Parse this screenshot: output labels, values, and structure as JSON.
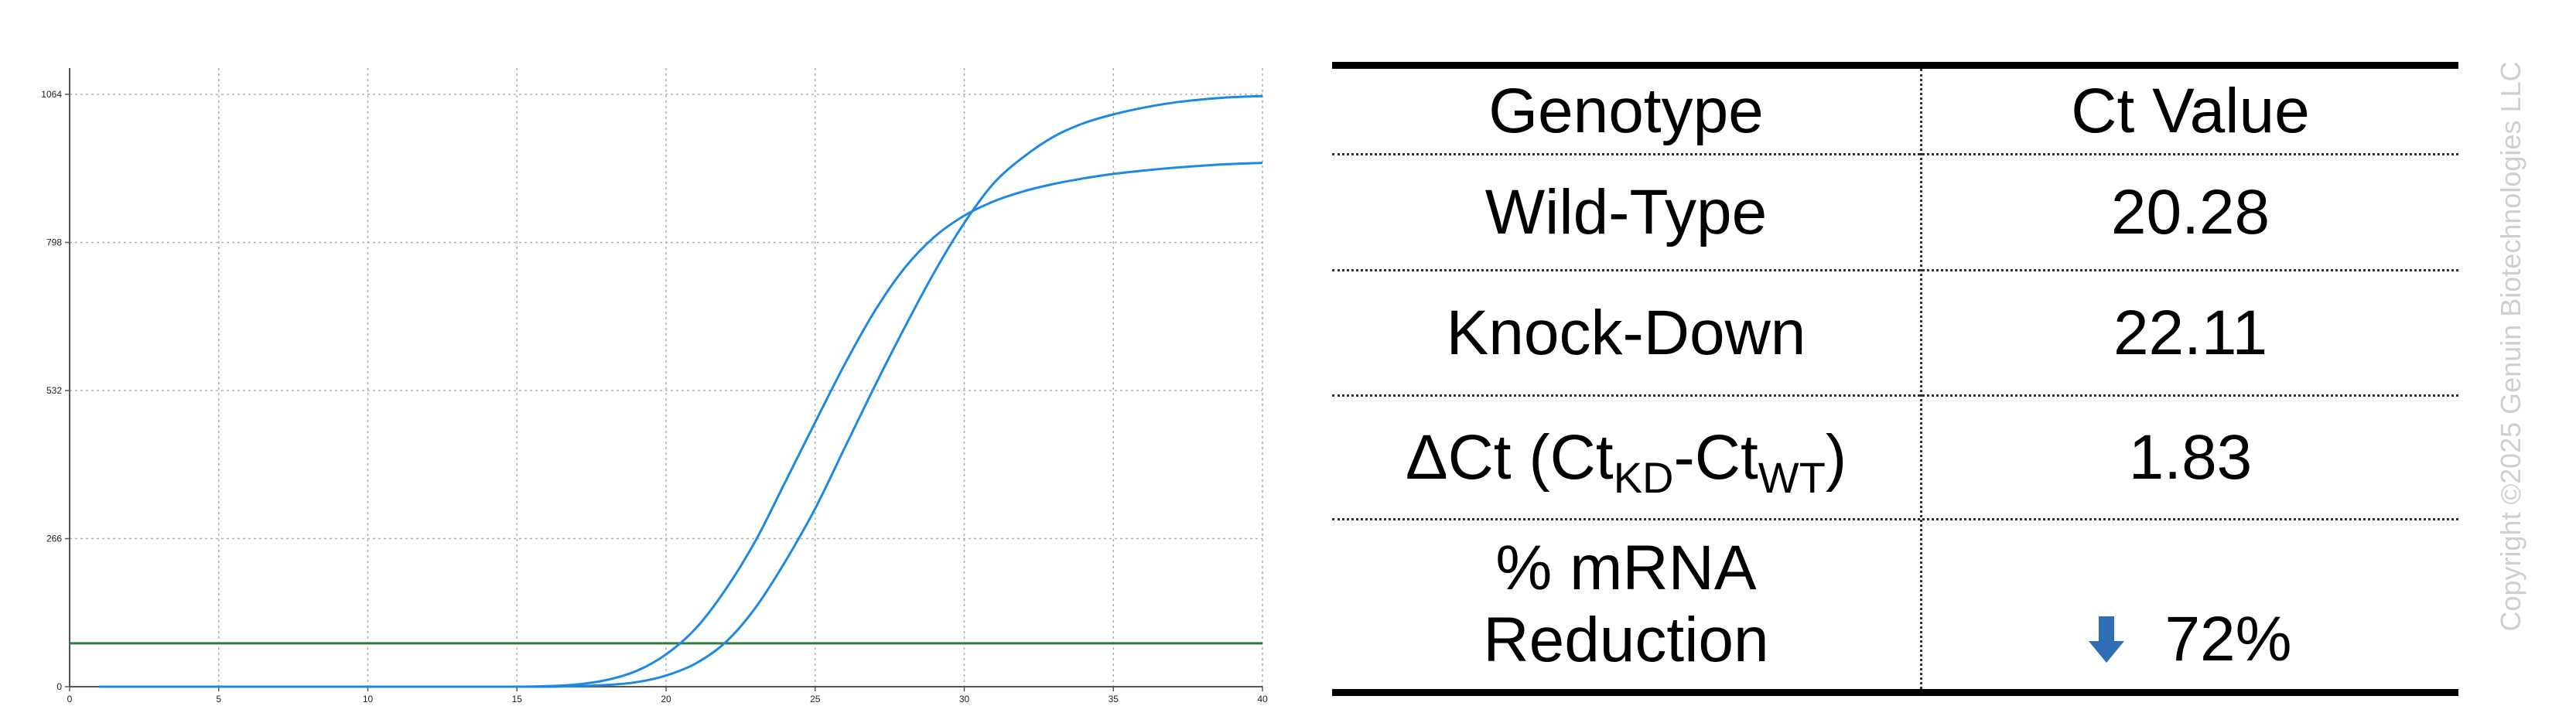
{
  "chart_data": {
    "type": "line",
    "x_ticks": [
      0,
      5,
      10,
      15,
      20,
      25,
      30,
      35,
      40
    ],
    "y_ticks": [
      0,
      266,
      532,
      798,
      1064
    ],
    "xlim": [
      0,
      40
    ],
    "ylim": [
      0,
      1064
    ],
    "grid": true,
    "threshold": 78,
    "series": [
      {
        "x": [
          1,
          13,
          15,
          16,
          17,
          18,
          19,
          20,
          21,
          22,
          23,
          24,
          25,
          26,
          27,
          28,
          29,
          30,
          31,
          32,
          33,
          34,
          35,
          36,
          37,
          38,
          39,
          40
        ],
        "y": [
          0,
          0,
          0,
          1,
          4,
          12,
          28,
          58,
          105,
          175,
          262,
          368,
          475,
          580,
          675,
          752,
          808,
          846,
          872,
          890,
          903,
          913,
          921,
          927,
          932,
          936,
          939,
          941
        ]
      },
      {
        "x": [
          1,
          15,
          16,
          17,
          18,
          19,
          20,
          21,
          22,
          23,
          24,
          25,
          26,
          27,
          28,
          29,
          30,
          31,
          32,
          33,
          34,
          35,
          36,
          37,
          38,
          39,
          40
        ],
        "y": [
          0,
          0,
          0,
          1,
          3,
          8,
          20,
          42,
          80,
          142,
          225,
          320,
          430,
          540,
          645,
          745,
          833,
          905,
          952,
          988,
          1012,
          1028,
          1040,
          1049,
          1055,
          1059,
          1061
        ]
      }
    ],
    "colors": {
      "curve": "#1e88e5",
      "threshold": "#2e7d32",
      "grid": "#b0b0b0",
      "axis": "#555555"
    }
  },
  "table": {
    "header": {
      "col1": "Genotype",
      "col2": "Ct Value"
    },
    "rows": [
      {
        "label": "Wild-Type",
        "value": "20.28"
      },
      {
        "label": "Knock-Down",
        "value": "22.11"
      }
    ],
    "delta": {
      "symbol": "ΔCt (Ct",
      "sub1": "KD",
      "dash": "-Ct",
      "sub2": "WT",
      "close": ")",
      "value": "1.83"
    },
    "reduction": {
      "line1": "% mRNA",
      "line2": "Reduction",
      "value": "72%",
      "arrow_icon": "arrow-down-icon",
      "arrow_color": "#2f6db5"
    }
  },
  "copyright": "Copyright ©2025 Genuin Biotechnologies LLC"
}
